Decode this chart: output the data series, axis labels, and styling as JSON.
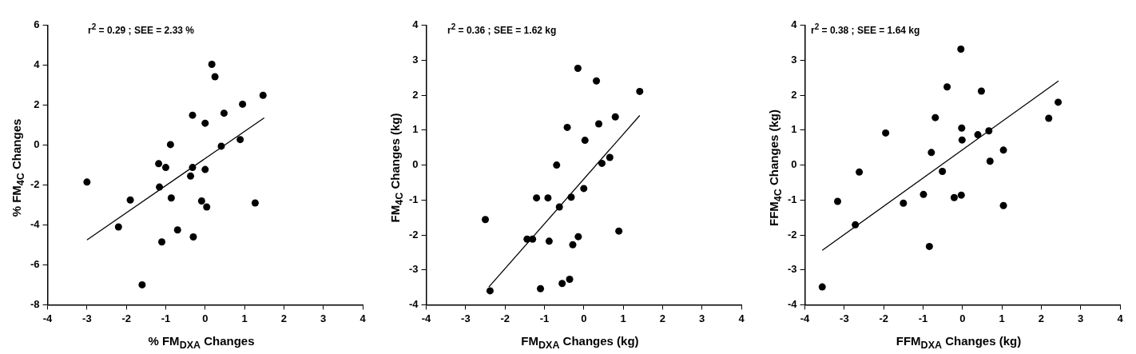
{
  "chart_data": [
    {
      "type": "scatter",
      "xlabel": "% FM$_{DXA}$ Changes",
      "ylabel": "% FM$_{4C}$ Changes",
      "annotations": [
        "r$^{2}$ = 0.29 ; SEE = 2.33 %"
      ],
      "xlim": [
        -4,
        4
      ],
      "xticks": [
        -4,
        -3,
        -2,
        -1,
        0,
        1,
        2,
        3,
        4
      ],
      "ylim": [
        -8,
        6
      ],
      "yticks": [
        -8,
        -6,
        -4,
        -2,
        0,
        2,
        4,
        6
      ],
      "grid": false,
      "legend": false,
      "marker": "circle",
      "series": [
        {
          "type": "scatter",
          "color": "#000000",
          "x": [
            -3.0,
            -2.2,
            -1.9,
            -1.6,
            -1.18,
            -1.16,
            -1.1,
            -1.0,
            -0.88,
            -0.86,
            -0.7,
            -0.37,
            -0.32,
            -0.32,
            -0.3,
            -0.09,
            0,
            0,
            0.04,
            0.17,
            0.25,
            0.41,
            0.48,
            0.89,
            0.95,
            1.27,
            1.47
          ],
          "values": [
            -1.85,
            -4.1,
            -2.75,
            -7.0,
            -0.93,
            -2.1,
            -4.85,
            -1.12,
            0.03,
            -2.65,
            -4.25,
            -1.55,
            1.5,
            -1.12,
            -4.6,
            -2.8,
            1.1,
            -1.22,
            -3.1,
            4.05,
            3.43,
            -0.05,
            1.6,
            0.28,
            2.05,
            -2.9,
            2.5
          ]
        },
        {
          "type": "line",
          "color": "#000000",
          "marker": "none",
          "line_style": "solid",
          "x": [
            -3.0,
            1.5
          ],
          "values": [
            -4.75,
            1.37
          ]
        }
      ]
    },
    {
      "type": "scatter",
      "xlabel": "FM$_{DXA}$ Changes (kg)",
      "ylabel": "FM$_{4C}$ Changes (kg)",
      "annotations": [
        "r$^{2}$ = 0.36 ; SEE = 1.62 kg"
      ],
      "xlim": [
        -4,
        4
      ],
      "xticks": [
        -4,
        -3,
        -2,
        -1,
        0,
        1,
        2,
        3,
        4
      ],
      "ylim": [
        -4,
        4
      ],
      "yticks": [
        -4,
        -3,
        -2,
        -1,
        0,
        1,
        2,
        3,
        4
      ],
      "grid": false,
      "legend": false,
      "marker": "circle",
      "series": [
        {
          "type": "scatter",
          "color": "#000000",
          "x": [
            -2.5,
            -2.38,
            -1.44,
            -1.3,
            -1.2,
            -1.1,
            -0.91,
            -0.88,
            -0.69,
            -0.62,
            -0.55,
            -0.42,
            -0.36,
            -0.32,
            -0.28,
            -0.15,
            -0.14,
            0,
            0.03,
            0.32,
            0.38,
            0.46,
            0.66,
            0.8,
            0.89,
            1.42
          ],
          "values": [
            -1.56,
            -3.6,
            -2.12,
            -2.12,
            -0.94,
            -3.54,
            -0.94,
            -2.18,
            0,
            -1.2,
            -3.39,
            1.08,
            -3.27,
            -0.92,
            -2.28,
            2.77,
            -2.05,
            -0.67,
            0.71,
            2.41,
            1.18,
            0.05,
            0.22,
            1.38,
            -1.89,
            2.11
          ]
        },
        {
          "type": "line",
          "color": "#000000",
          "marker": "none",
          "line_style": "solid",
          "x": [
            -2.41,
            1.42
          ],
          "values": [
            -3.49,
            1.42
          ]
        }
      ]
    },
    {
      "type": "scatter",
      "xlabel": "FFM$_{DXA}$ Changes (kg)",
      "ylabel": "FFM$_{4C}$ Changes (kg)",
      "annotations": [
        "r$^{2}$ = 0.38 ; SEE = 1.64 kg"
      ],
      "xlim": [
        -4,
        4
      ],
      "xticks": [
        -4,
        -3,
        -2,
        -1,
        0,
        1,
        2,
        3,
        4
      ],
      "ylim": [
        -4,
        4
      ],
      "yticks": [
        -4,
        -3,
        -2,
        -1,
        0,
        1,
        2,
        3,
        4
      ],
      "grid": false,
      "legend": false,
      "marker": "circle",
      "series": [
        {
          "type": "scatter",
          "color": "#000000",
          "x": [
            -3.56,
            -3.17,
            -2.72,
            -2.62,
            -1.95,
            -1.5,
            -0.99,
            -0.84,
            -0.79,
            -0.69,
            -0.51,
            -0.39,
            -0.21,
            -0.04,
            -0.03,
            -0.02,
            -0.01,
            0.39,
            0.48,
            0.67,
            0.7,
            1.04,
            1.04,
            2.19,
            2.43
          ],
          "values": [
            -3.49,
            -1.04,
            -1.71,
            -0.2,
            0.92,
            -1.09,
            -0.84,
            -2.33,
            0.36,
            1.36,
            -0.18,
            2.24,
            -0.93,
            3.32,
            -0.86,
            1.06,
            0.72,
            0.87,
            2.12,
            0.98,
            0.11,
            0.43,
            -1.16,
            1.34,
            1.8
          ]
        },
        {
          "type": "line",
          "color": "#000000",
          "marker": "none",
          "line_style": "solid",
          "x": [
            -3.56,
            2.44
          ],
          "values": [
            -2.44,
            2.41
          ]
        }
      ]
    }
  ]
}
